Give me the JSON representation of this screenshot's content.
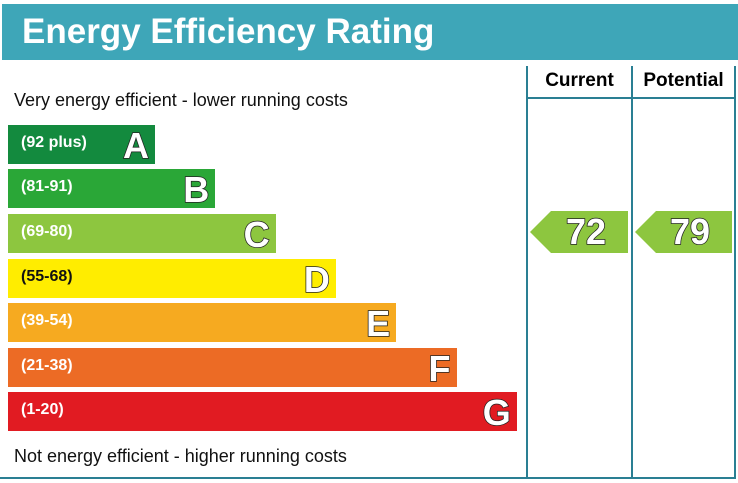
{
  "chart_data": {
    "type": "bar",
    "title": "Energy Efficiency Rating",
    "top_note": "Very energy efficient - lower running costs",
    "bottom_note": "Not energy efficient - higher running costs",
    "columns": [
      "Current",
      "Potential"
    ],
    "bands": [
      {
        "letter": "A",
        "range": "(92 plus)",
        "color": "#138a3e"
      },
      {
        "letter": "B",
        "range": "(81-91)",
        "color": "#2aa737"
      },
      {
        "letter": "C",
        "range": "(69-80)",
        "color": "#8dc63f"
      },
      {
        "letter": "D",
        "range": "(55-68)",
        "color": "#ffed00"
      },
      {
        "letter": "E",
        "range": "(39-54)",
        "color": "#f6aa20"
      },
      {
        "letter": "F",
        "range": "(21-38)",
        "color": "#ec6b25"
      },
      {
        "letter": "G",
        "range": "(1-20)",
        "color": "#e11b22"
      }
    ],
    "current": {
      "value": "72",
      "band": "C",
      "color": "#8dc63f"
    },
    "potential": {
      "value": "79",
      "band": "C",
      "color": "#8dc63f"
    }
  },
  "colors": {
    "header": "#3ea6b8",
    "lines": "#2a7f93"
  }
}
